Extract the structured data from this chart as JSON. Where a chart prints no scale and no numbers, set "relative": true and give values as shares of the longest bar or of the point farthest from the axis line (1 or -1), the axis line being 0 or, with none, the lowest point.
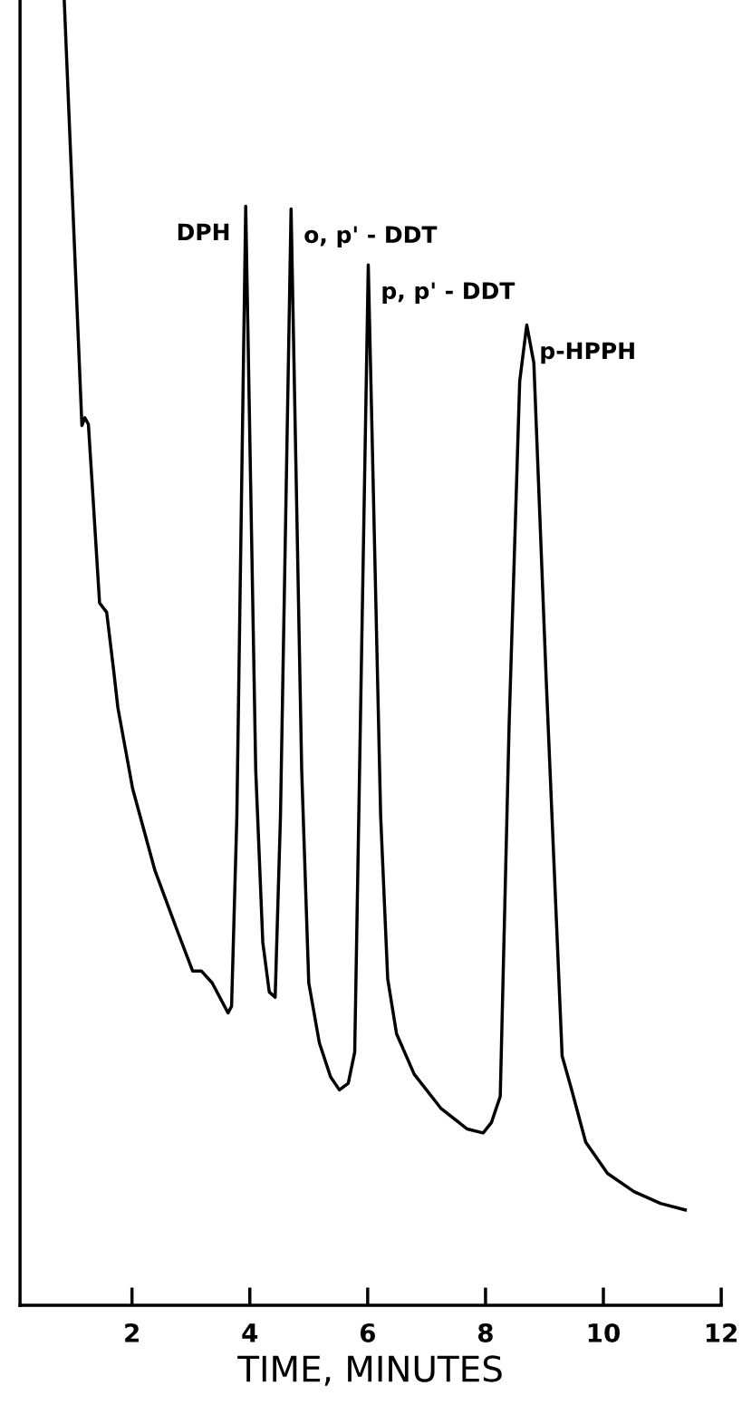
{
  "chart_data": {
    "type": "line",
    "relative": true,
    "xlabel": "TIME, MINUTES",
    "color": "#000000",
    "xlim": [
      0.1,
      12
    ],
    "xticks": [
      2,
      4,
      6,
      8,
      10,
      12
    ],
    "grid": false,
    "legend": false,
    "marker": "none",
    "line_style": "solid",
    "x": [
      0.85,
      1.15,
      1.2,
      1.26,
      1.33,
      1.45,
      1.57,
      1.69,
      1.76,
      2.01,
      2.39,
      2.76,
      3.03,
      3.18,
      3.36,
      3.63,
      3.69,
      3.78,
      3.93,
      4.1,
      4.22,
      4.33,
      4.43,
      4.52,
      4.7,
      4.88,
      5.0,
      5.18,
      5.37,
      5.52,
      5.67,
      5.78,
      6.01,
      6.22,
      6.34,
      6.49,
      6.79,
      7.24,
      7.69,
      7.96,
      8.1,
      8.25,
      8.4,
      8.58,
      8.7,
      8.82,
      9.03,
      9.3,
      9.45,
      9.7,
      10.07,
      10.52,
      10.97,
      11.39
    ],
    "values": [
      1.0,
      0.674,
      0.68,
      0.675,
      0.625,
      0.538,
      0.531,
      0.486,
      0.458,
      0.396,
      0.333,
      0.288,
      0.256,
      0.256,
      0.247,
      0.224,
      0.229,
      0.375,
      0.842,
      0.41,
      0.278,
      0.24,
      0.236,
      0.375,
      0.84,
      0.41,
      0.247,
      0.201,
      0.175,
      0.165,
      0.17,
      0.194,
      0.797,
      0.375,
      0.25,
      0.208,
      0.177,
      0.151,
      0.135,
      0.132,
      0.14,
      0.16,
      0.444,
      0.708,
      0.751,
      0.722,
      0.479,
      0.191,
      0.167,
      0.125,
      0.101,
      0.087,
      0.078,
      0.073
    ],
    "annotations": [
      {
        "text": "DPH",
        "x": 3.93,
        "y": 0.842
      },
      {
        "text": "o, p' - DDT",
        "x": 4.7,
        "y": 0.84
      },
      {
        "text": "p, p' - DDT",
        "x": 6.01,
        "y": 0.797
      },
      {
        "text": "p-HPPH",
        "x": 8.7,
        "y": 0.751
      }
    ]
  }
}
